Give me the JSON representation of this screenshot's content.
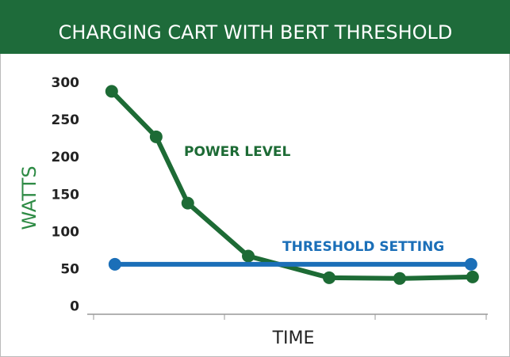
{
  "chart_data": {
    "type": "line",
    "title": "CHARGING CART WITH BERT THRESHOLD",
    "x_label": "TIME",
    "y_label": "WATTS",
    "xlim": [
      0,
      100
    ],
    "ylim": [
      -10,
      300
    ],
    "yticks": [
      0,
      50,
      100,
      150,
      200,
      250,
      300
    ],
    "series": [
      {
        "name": "POWER LEVEL",
        "color": "#1d6b35",
        "x": [
          6.1,
          17.2,
          25.1,
          40.2,
          60.4,
          78.0,
          96.2
        ],
        "values": [
          289,
          228,
          139,
          68,
          39,
          38,
          40
        ]
      },
      {
        "name": "THRESHOLD SETTING",
        "color": "#1b6fb8",
        "x": [
          6.9,
          95.8
        ],
        "values": [
          57,
          57
        ]
      }
    ]
  }
}
